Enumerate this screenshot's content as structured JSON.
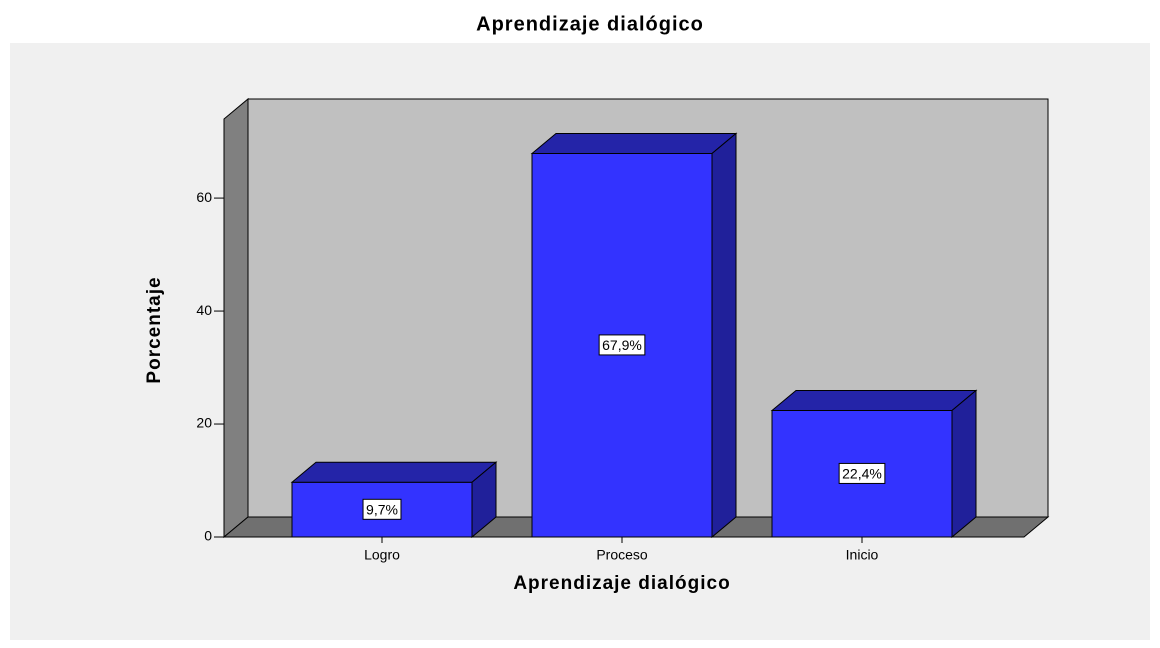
{
  "chart_data": {
    "type": "bar3d",
    "title": "Aprendizaje dialógico",
    "x_label": "Aprendizaje dialógico",
    "y_label": "Porcentaje",
    "categories": [
      "Logro",
      "Proceso",
      "Inicio"
    ],
    "values": [
      9.7,
      67.9,
      22.4
    ],
    "value_labels": [
      "9,7%",
      "67,9%",
      "22,4%"
    ],
    "color": "#3333ff",
    "ylim": [
      0,
      74
    ],
    "yticks": [
      0,
      20,
      40,
      60
    ]
  }
}
